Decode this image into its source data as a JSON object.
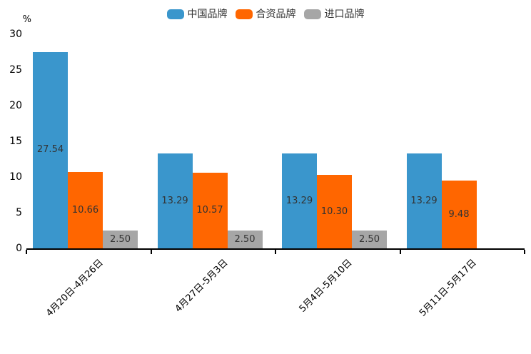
{
  "legend": {
    "items": [
      {
        "id": "china-brand",
        "label": "中国品牌",
        "color": "#3A96CC"
      },
      {
        "id": "joint-venture-brand",
        "label": "合资品牌",
        "color": "#FF6600"
      },
      {
        "id": "import-brand",
        "label": "进口品牌",
        "color": "#A6A6A6"
      }
    ]
  },
  "chart_data": {
    "type": "bar",
    "title": "",
    "ylabel": "%",
    "xlabel": "",
    "ylim": [
      0,
      30
    ],
    "yticks": [
      0,
      5,
      10,
      15,
      20,
      25,
      30
    ],
    "grid": false,
    "legend_position": "top",
    "value_labels": "inside-center",
    "value_label_format": "2-decimals",
    "x_label_rotation": -45,
    "categories": [
      "4月20日-4月26日",
      "4月27日-5月3日",
      "5月4日-5月10日",
      "5月11日-5月17日"
    ],
    "series": [
      {
        "id": "china-brand",
        "name": "中国品牌",
        "color": "#3A96CC",
        "values": [
          27.54,
          13.29,
          13.29,
          13.29
        ]
      },
      {
        "id": "joint-venture-brand",
        "name": "合资品牌",
        "color": "#FF6600",
        "values": [
          10.66,
          10.57,
          10.3,
          9.48
        ]
      },
      {
        "id": "import-brand",
        "name": "进口品牌",
        "color": "#A6A6A6",
        "values": [
          2.5,
          2.5,
          2.5,
          null
        ]
      }
    ],
    "axis_color": "#000000",
    "value_label_color": "#333333"
  }
}
